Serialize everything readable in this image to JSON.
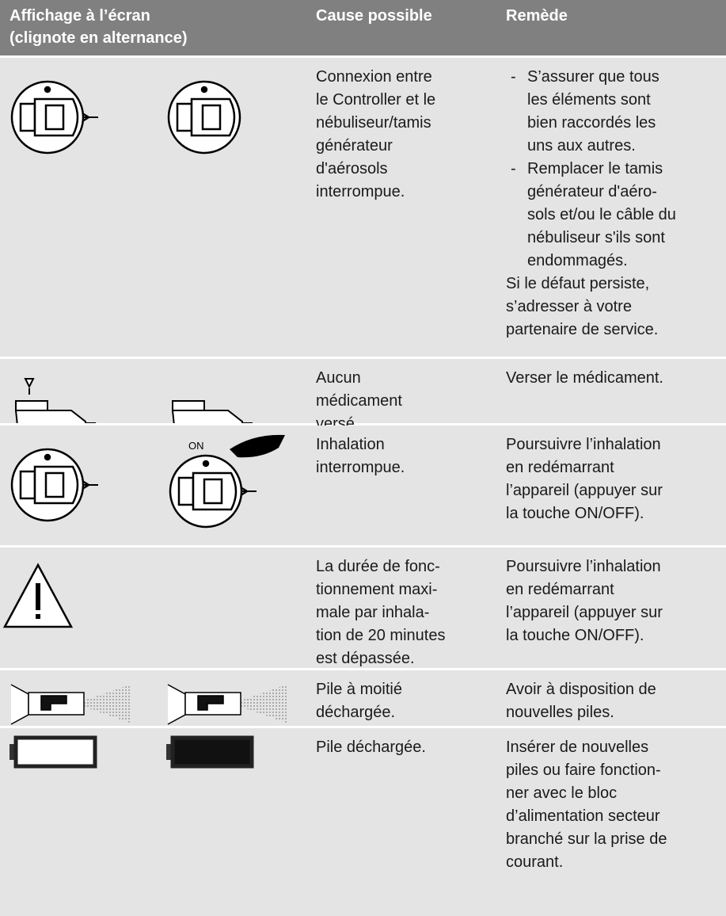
{
  "header": {
    "cells": [
      [
        "Affichage à l’écran",
        "(clignote en alternance)"
      ],
      [
        "Cause possible"
      ],
      [
        "Remède"
      ]
    ]
  },
  "rows": [
    {
      "icon": "neb",
      "cause": [
        "Connexion entre",
        "le Controller et le",
        "nébuliseur/tamis",
        "générateur",
        "d'aérosols",
        "interrompue."
      ],
      "remedy": [
        {
          "marker": "-",
          "lines": [
            "S’assurer que tous",
            "les éléments sont",
            "bien raccordés les",
            "uns aux autres."
          ]
        },
        {
          "marker": "-",
          "lines": [
            "Remplacer le tamis",
            "générateur d'aéro-",
            "sols et/ou le câble du",
            "nébuliseur s'ils sont",
            "endommagés."
          ]
        },
        {
          "lines": [
            "Si le défaut persiste,",
            "s’adresser à votre",
            "partenaire de service."
          ]
        }
      ]
    },
    {
      "icon": "med",
      "cause": [
        "Aucun",
        "médicament",
        "versé."
      ],
      "remedy": [
        {
          "lines": [
            "Verser le médicament."
          ]
        }
      ]
    },
    {
      "icon": "on",
      "icon_label": "ON",
      "cause": [
        "Inhalation",
        "interrompue."
      ],
      "remedy": [
        {
          "lines": [
            "Poursuivre l’inhalation",
            "en redémarrant",
            "l’appareil (appuyer sur",
            "la touche ON/OFF)."
          ]
        }
      ]
    },
    {
      "icon": "warn",
      "cause": [
        "La durée de fonc-",
        "tionnement maxi-",
        "male par inhala-",
        "tion de 20 minutes",
        "est dépassée."
      ],
      "remedy": [
        {
          "lines": [
            "Poursuivre l’inhalation",
            "en redémarrant",
            "l’appareil (appuyer sur",
            "la touche ON/OFF)."
          ]
        }
      ]
    },
    {
      "icon": "spray",
      "cause": [
        "Pile à moitié",
        "déchargée."
      ],
      "remedy": [
        {
          "lines": [
            "Avoir à disposition de",
            "nouvelles piles."
          ]
        }
      ]
    },
    {
      "icon": "batt",
      "cause": [
        "Pile déchargée."
      ],
      "remedy": [
        {
          "lines": [
            "Insérer de nouvelles",
            "piles ou faire fonction-",
            "ner avec le bloc",
            "d’alimentation secteur",
            "branché sur la prise de",
            "courant."
          ]
        }
      ]
    }
  ]
}
